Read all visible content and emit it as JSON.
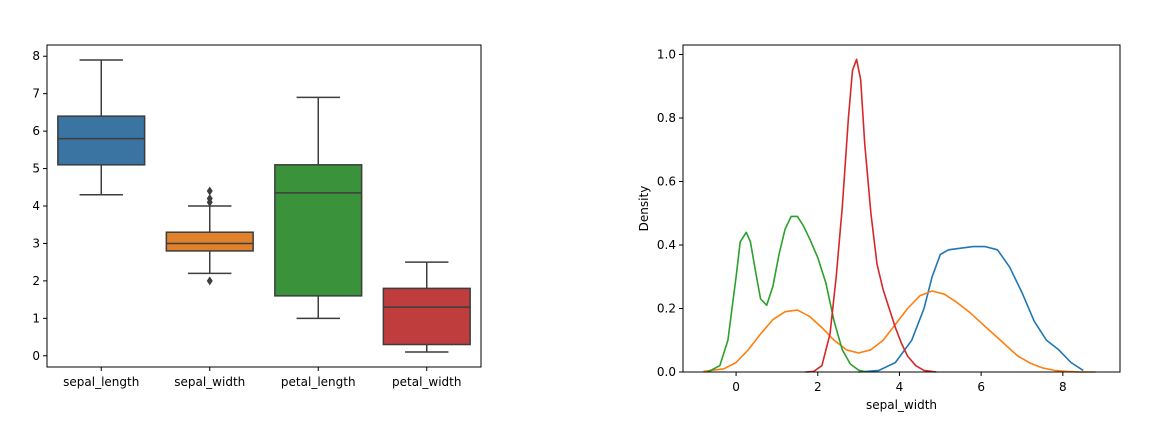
{
  "chart_data": [
    {
      "type": "box",
      "categories": [
        "sepal_length",
        "sepal_width",
        "petal_length",
        "petal_width"
      ],
      "colors": [
        "#3a74a3",
        "#e1812c",
        "#3a923a",
        "#c03d3e"
      ],
      "boxes": [
        {
          "min": 4.3,
          "q1": 5.1,
          "median": 5.8,
          "q3": 6.4,
          "max": 7.9,
          "outliers": []
        },
        {
          "min": 2.2,
          "q1": 2.8,
          "median": 3.0,
          "q3": 3.3,
          "max": 4.0,
          "outliers": [
            4.1,
            4.2,
            4.4,
            2.0
          ]
        },
        {
          "min": 1.0,
          "q1": 1.6,
          "median": 4.35,
          "q3": 5.1,
          "max": 6.9,
          "outliers": []
        },
        {
          "min": 0.1,
          "q1": 0.3,
          "median": 1.3,
          "q3": 1.8,
          "max": 2.5,
          "outliers": []
        }
      ],
      "ylim": [
        -0.3,
        8.3
      ],
      "yticks": [
        "0",
        "1",
        "2",
        "3",
        "4",
        "5",
        "6",
        "7",
        "8"
      ],
      "grid": false
    },
    {
      "type": "line",
      "xlabel": "sepal_width",
      "ylabel": "Density",
      "xlim": [
        -1.3,
        9.4
      ],
      "ylim": [
        0,
        1.03
      ],
      "xticks": [
        "0",
        "2",
        "4",
        "6",
        "8"
      ],
      "yticks": [
        "0.0",
        "0.2",
        "0.4",
        "0.6",
        "0.8",
        "1.0"
      ],
      "grid": false,
      "series": [
        {
          "color": "#1f77b4",
          "x": [
            3.0,
            3.5,
            3.9,
            4.3,
            4.6,
            4.8,
            5.0,
            5.2,
            5.5,
            5.8,
            6.1,
            6.4,
            6.7,
            7.0,
            7.3,
            7.6,
            7.9,
            8.2,
            8.5
          ],
          "y": [
            0.0,
            0.005,
            0.03,
            0.1,
            0.2,
            0.3,
            0.37,
            0.385,
            0.39,
            0.395,
            0.395,
            0.385,
            0.33,
            0.25,
            0.16,
            0.1,
            0.07,
            0.03,
            0.005
          ]
        },
        {
          "color": "#ff7f0e",
          "x": [
            -0.8,
            -0.3,
            0.0,
            0.3,
            0.6,
            0.9,
            1.2,
            1.5,
            1.8,
            2.1,
            2.4,
            2.7,
            3.0,
            3.3,
            3.6,
            3.9,
            4.2,
            4.5,
            4.8,
            5.1,
            5.4,
            5.7,
            6.0,
            6.3,
            6.6,
            6.9,
            7.2,
            7.5,
            7.8,
            8.1,
            8.4,
            8.8
          ],
          "y": [
            0.002,
            0.01,
            0.03,
            0.07,
            0.12,
            0.165,
            0.19,
            0.195,
            0.175,
            0.14,
            0.1,
            0.07,
            0.06,
            0.07,
            0.1,
            0.15,
            0.2,
            0.24,
            0.255,
            0.245,
            0.22,
            0.19,
            0.155,
            0.12,
            0.085,
            0.05,
            0.028,
            0.013,
            0.005,
            0.002,
            0.0,
            0.0
          ]
        },
        {
          "color": "#2ca02c",
          "x": [
            -0.7,
            -0.4,
            -0.2,
            0.0,
            0.1,
            0.25,
            0.35,
            0.5,
            0.6,
            0.75,
            0.9,
            1.05,
            1.2,
            1.35,
            1.5,
            1.65,
            1.8,
            2.0,
            2.2,
            2.4,
            2.6,
            2.8,
            3.0,
            3.2
          ],
          "y": [
            0.0,
            0.02,
            0.1,
            0.3,
            0.41,
            0.44,
            0.41,
            0.3,
            0.23,
            0.21,
            0.27,
            0.37,
            0.45,
            0.49,
            0.49,
            0.46,
            0.42,
            0.36,
            0.28,
            0.16,
            0.07,
            0.025,
            0.006,
            0.0
          ]
        },
        {
          "color": "#d62728",
          "x": [
            1.7,
            1.9,
            2.1,
            2.3,
            2.45,
            2.6,
            2.75,
            2.85,
            2.95,
            3.05,
            3.15,
            3.3,
            3.45,
            3.6,
            3.75,
            3.9,
            4.05,
            4.2,
            4.4,
            4.6,
            4.9
          ],
          "y": [
            0.0,
            0.002,
            0.02,
            0.12,
            0.3,
            0.52,
            0.8,
            0.95,
            0.985,
            0.92,
            0.72,
            0.5,
            0.34,
            0.26,
            0.2,
            0.14,
            0.09,
            0.05,
            0.02,
            0.005,
            0.0
          ]
        }
      ]
    }
  ]
}
